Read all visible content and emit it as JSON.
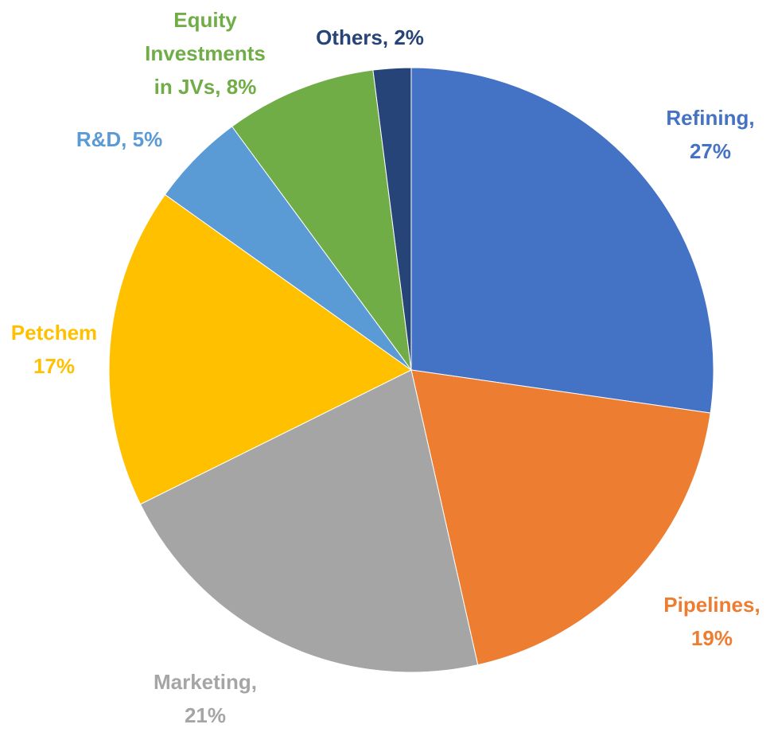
{
  "chart_data": {
    "type": "pie",
    "categories": [
      "Refining,",
      "Pipelines,",
      "Marketing,",
      "Petchem",
      "R&D,",
      "Equity Investments in JVs,",
      "Others,"
    ],
    "values": [
      27,
      19,
      21,
      17,
      5,
      8,
      2
    ],
    "value_labels": [
      "27%",
      "19%",
      "21%",
      "17%",
      "5%",
      "8%",
      "2%"
    ],
    "colors": [
      "#4472c4",
      "#ed7d31",
      "#a5a5a5",
      "#ffc000",
      "#5b9bd5",
      "#70ad47",
      "#264478"
    ]
  }
}
